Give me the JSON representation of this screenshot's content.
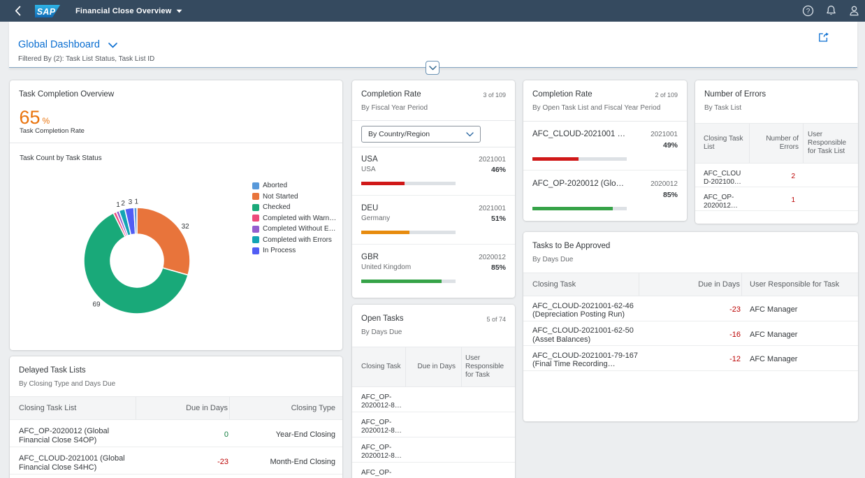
{
  "shellbar": {
    "back_icon": "chevron-left",
    "logo": "SAP",
    "app_title": "Financial Close Overview",
    "right_icons": [
      "help",
      "notifications",
      "user"
    ]
  },
  "header": {
    "title": "Global Dashboard",
    "filter_text": "Filtered By (2): Task List Status, Task List ID",
    "share_icon": "share",
    "collapse_icon": "chevron-down"
  },
  "colors": {
    "shell_bg": "#354a5f",
    "accent_blue": "#0a6ed1",
    "kpi_orange": "#e9730c",
    "negative": "#bb0000",
    "positive": "#107e3e",
    "bar_red": "#d01818",
    "bar_orange": "#e78b0e",
    "bar_green": "#36a348"
  },
  "cards": {
    "task_completion": {
      "title": "Task Completion Overview",
      "kpi_value": "65",
      "kpi_unit": "%",
      "kpi_label": "Task Completion Rate",
      "section_label": "Task Count by Task Status"
    },
    "completion_rate_fiscal": {
      "title": "Completion Rate",
      "subtitle": "By Fiscal Year Period",
      "count": "3 of 109",
      "dropdown_value": "By Country/Region"
    },
    "completion_rate_open": {
      "title": "Completion Rate",
      "subtitle": "By Open Task List and Fiscal Year Period",
      "count": "2 of 109"
    },
    "number_of_errors": {
      "title": "Number of Errors",
      "subtitle": "By Task List",
      "columns": [
        "Closing Task List",
        "Number of Errors",
        "User Responsible for Task List"
      ],
      "rows": [
        {
          "task_line1": "AFC_CLOU",
          "task_line2": "D-202100…",
          "errors": "2",
          "user": ""
        },
        {
          "task_line1": "AFC_OP-",
          "task_line2": "2020012…",
          "errors": "1",
          "user": ""
        }
      ]
    },
    "tasks_to_approve": {
      "title": "Tasks to Be Approved",
      "subtitle": "By Days Due",
      "columns": [
        "Closing Task",
        "Due in Days",
        "User Responsible for Task"
      ],
      "rows": [
        {
          "task": "AFC_CLOUD-2021001-62-46 (Depreciation Posting Run)",
          "due": "-23",
          "user": "AFC Manager"
        },
        {
          "task": "AFC_CLOUD-2021001-62-50 (Asset Balances)",
          "due": "-16",
          "user": "AFC Manager"
        },
        {
          "task": "AFC_CLOUD-2021001-79-167 (Final Time Recording…",
          "due": "-12",
          "user": "AFC Manager"
        }
      ]
    },
    "delayed_task_lists": {
      "title": "Delayed Task Lists",
      "subtitle": "By Closing Type and Days Due",
      "columns": [
        "Closing Task List",
        "Due in Days",
        "Closing Type"
      ],
      "rows": [
        {
          "task": "AFC_OP-2020012 (Global Financial Close S4OP)",
          "due": "0",
          "due_sign": "pos",
          "type": "Year-End Closing"
        },
        {
          "task": "AFC_CLOUD-2021001 (Global Financial Close S4HC)",
          "due": "-23",
          "due_sign": "neg",
          "type": "Month-End Closing"
        }
      ]
    },
    "open_tasks": {
      "title": "Open Tasks",
      "subtitle": "By Days Due",
      "count": "5 of 74",
      "columns": [
        "Closing Task",
        "Due in Days",
        "User Responsible for Task"
      ],
      "rows": [
        {
          "task_line1": "AFC_OP-",
          "task_line2": "2020012-8…",
          "due": "",
          "user": ""
        },
        {
          "task_line1": "AFC_OP-",
          "task_line2": "2020012-8…",
          "due": "",
          "user": ""
        },
        {
          "task_line1": "AFC_OP-",
          "task_line2": "2020012-8…",
          "due": "",
          "user": ""
        },
        {
          "task_line1": "AFC_OP-",
          "task_line2": "",
          "due": "",
          "user": ""
        }
      ]
    }
  },
  "chart_data": [
    {
      "type": "donut",
      "title": "Task Count by Task Status",
      "total": 109,
      "slices": [
        {
          "name": "Not Started",
          "value": 32,
          "color": "#E8743B",
          "label": "32",
          "label_angle": 54.5
        },
        {
          "name": "Checked",
          "value": 69,
          "color": "#19A979",
          "label": "69",
          "label_angle": 223
        },
        {
          "name": "Completed with Warnings",
          "value": 1,
          "color": "#ED4A7B",
          "label": "1",
          "label_angle": 341.5
        },
        {
          "name": "Completed Without Errors",
          "value": 1,
          "color": "#945ECF",
          "label": "",
          "label_angle": null
        },
        {
          "name": "Completed with Errors",
          "value": 2,
          "color": "#13A4B4",
          "label": "2",
          "label_angle": 346.5
        },
        {
          "name": "In Process",
          "value": 3,
          "color": "#525DF4",
          "label": "3",
          "label_angle": 353.5
        },
        {
          "name": "Aborted",
          "value": 1,
          "color": "#5899DA",
          "label": "1",
          "label_angle": 359.5
        }
      ],
      "legend": [
        {
          "label": "Aborted",
          "color": "#5899DA"
        },
        {
          "label": "Not Started",
          "color": "#E8743B"
        },
        {
          "label": "Checked",
          "color": "#19A979"
        },
        {
          "label": "Completed with Warn…",
          "color": "#ED4A7B"
        },
        {
          "label": "Completed Without E…",
          "color": "#945ECF"
        },
        {
          "label": "Completed with Errors",
          "color": "#13A4B4"
        },
        {
          "label": "In Process",
          "color": "#525DF4"
        }
      ],
      "legend_position": "right"
    },
    {
      "type": "bar",
      "title": "Completion Rate",
      "subtitle": "By Fiscal Year Period",
      "items": [
        {
          "title": "USA",
          "sub": "USA",
          "period": "2021001",
          "pct_label": "46%",
          "value": 46,
          "color": "#d01818"
        },
        {
          "title": "DEU",
          "sub": "Germany",
          "period": "2021001",
          "pct_label": "51%",
          "value": 51,
          "color": "#e78b0e"
        },
        {
          "title": "GBR",
          "sub": "United Kingdom",
          "period": "2020012",
          "pct_label": "85%",
          "value": 85,
          "color": "#36a348"
        }
      ],
      "xlim": [
        0,
        100
      ]
    },
    {
      "type": "bar",
      "title": "Completion Rate",
      "subtitle": "By Open Task List and Fiscal Year Period",
      "items": [
        {
          "title": "AFC_CLOUD-2021001 …",
          "sub": "",
          "period": "2021001",
          "pct_label": "49%",
          "value": 49,
          "color": "#d01818"
        },
        {
          "title": "AFC_OP-2020012 (Glo…",
          "sub": "",
          "period": "2020012",
          "pct_label": "85%",
          "value": 85,
          "color": "#36a348"
        }
      ],
      "xlim": [
        0,
        100
      ]
    }
  ]
}
